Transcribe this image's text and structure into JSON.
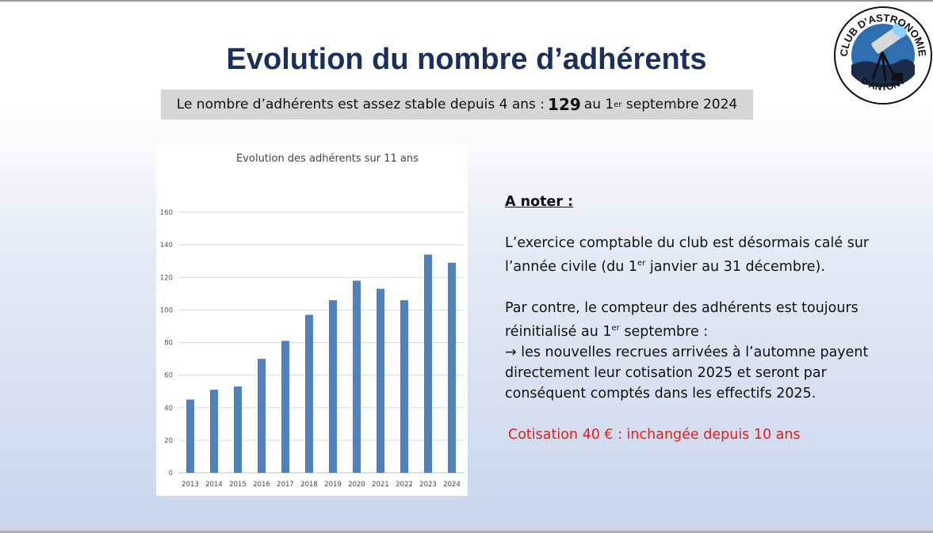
{
  "slide": {
    "title": "Evolution du nombre d’adhérents",
    "subtitle": {
      "before": "Le nombre d’adhérents est assez stable depuis 4 ans :",
      "highlight": "129",
      "after_prefix": "au 1",
      "after_sup": "er",
      "after_suffix": "septembre 2024"
    },
    "logo": {
      "text_top": "CLUB D'ASTRONOMIE",
      "text_bottom": "D'ANTONY",
      "icon": "telescope-icon"
    },
    "notes": {
      "heading": "A noter :",
      "p1_a": "L’exercice comptable du club est désormais calé sur l’année civile (du 1",
      "p1_sup": "er",
      "p1_b": "janvier au 31 décembre).",
      "p2_a": "Par contre, le compteur des adhérents est toujours réinitialisé au 1",
      "p2_sup": "er",
      "p2_b": "septembre :",
      "p2_arrow": "→",
      "p2_c": "les nouvelles recrues arrivées à l’automne payent directement leur cotisation 2025 et seront par conséquent comptés dans les effectifs 2025.",
      "cotisation": "Cotisation 40 € : inchangée depuis 10 ans",
      "cotisation_color": "#e3201b"
    }
  },
  "chart_data": {
    "type": "bar",
    "title": "Evolution des adhérents sur 11 ans",
    "categories": [
      "2013",
      "2014",
      "2015",
      "2016",
      "2017",
      "2018",
      "2019",
      "2020",
      "2021",
      "2022",
      "2023",
      "2024"
    ],
    "values": [
      45,
      51,
      53,
      70,
      81,
      97,
      106,
      118,
      113,
      106,
      134,
      129
    ],
    "ylim": [
      0,
      160
    ],
    "yticks": [
      0,
      20,
      40,
      60,
      80,
      100,
      120,
      140,
      160
    ],
    "grid": true,
    "bar_color": "#4f81bd"
  }
}
